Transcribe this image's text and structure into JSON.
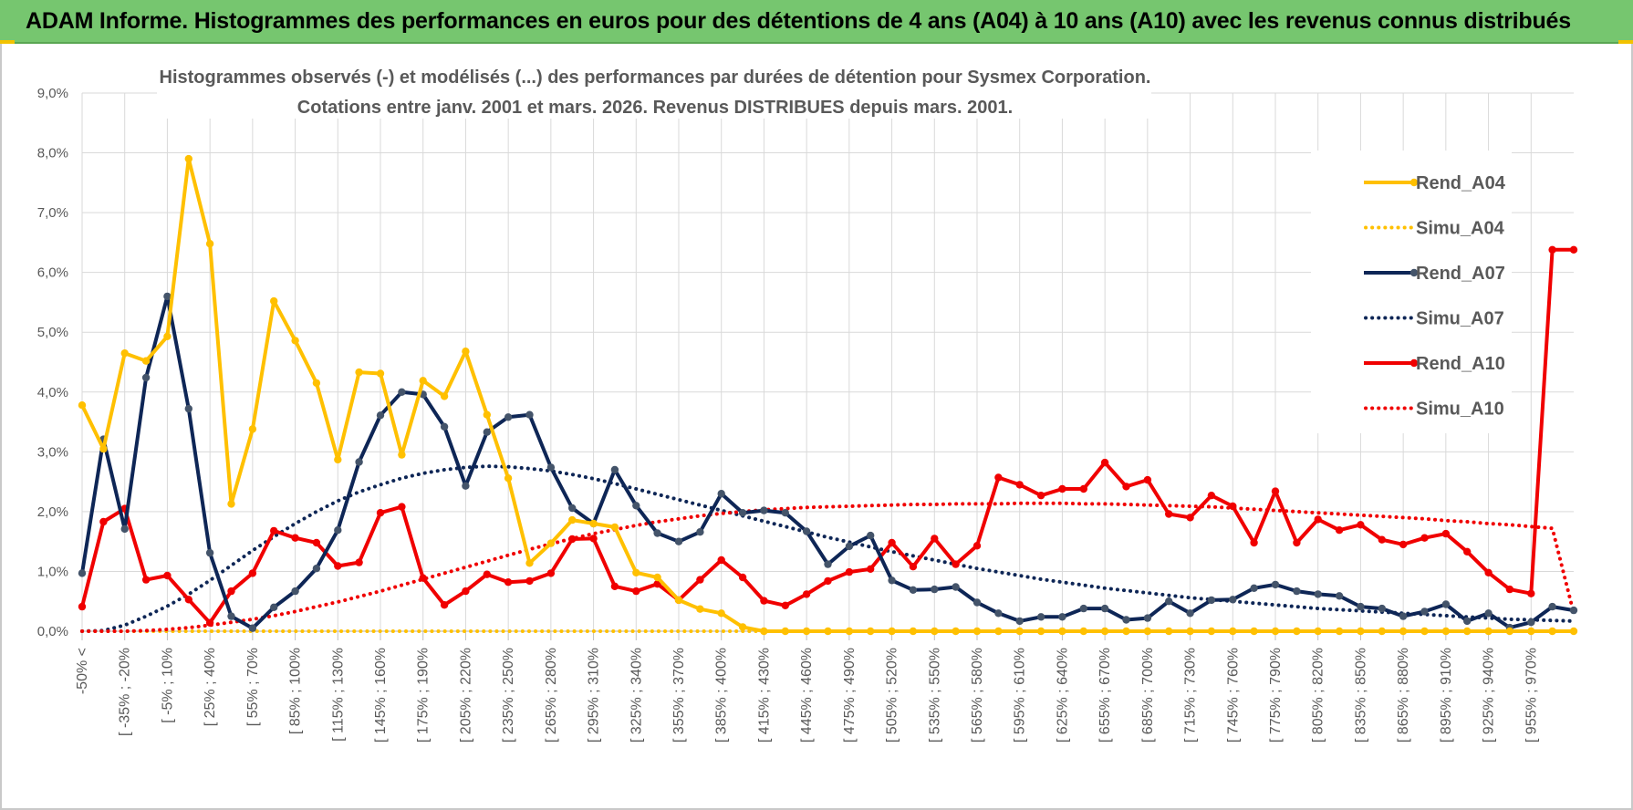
{
  "header": {
    "title": "ADAM Informe. Histogrammes des performances en euros pour des détentions de 4 ans (A04) à 10 ans (A10) avec les revenus connus distribués"
  },
  "colors": {
    "header_bg": "#76c66f",
    "a04": "#ffc000",
    "a07": "#0e2656",
    "a10": "#f00000",
    "grid": "#d9d9d9",
    "text": "#595959",
    "marker_a07": "#44546a"
  },
  "chart_data": {
    "type": "line",
    "title": "Histogrammes observés (-) et modélisés (...) des performances par durées de détention pour Sysmex Corporation.",
    "subtitle": "Cotations entre janv. 2001 et mars. 2026. Revenus DISTRIBUES depuis mars. 2001.",
    "ylim": [
      0,
      9
    ],
    "y_ticks": [
      "0,0%",
      "1,0%",
      "2,0%",
      "3,0%",
      "4,0%",
      "5,0%",
      "6,0%",
      "7,0%",
      "8,0%",
      "9,0%"
    ],
    "x_tick_labels": [
      "-50% <",
      "[ -35% ; -20%",
      "[ -5% ; 10%",
      "[ 25% ; 40%",
      "[ 55% ; 70%",
      "[ 85% ; 100%",
      "[ 115% ; 130%",
      "[ 145% ; 160%",
      "[ 175% ; 190%",
      "[ 205% ; 220%",
      "[ 235% ; 250%",
      "[ 265% ; 280%",
      "[ 295% ; 310%",
      "[ 325% ; 340%",
      "[ 355% ; 370%",
      "[ 385% ; 400%",
      "[ 415% ; 430%",
      "[ 445% ; 460%",
      "[ 475% ; 490%",
      "[ 505% ; 520%",
      "[ 535% ; 550%",
      "[ 565% ; 580%",
      "[ 595% ; 610%",
      "[ 625% ; 640%",
      "[ 655% ; 670%",
      "[ 685% ; 700%",
      "[ 715% ; 730%",
      "[ 745% ; 760%",
      "[ 775% ; 790%",
      "[ 805% ; 820%",
      "[ 835% ; 850%",
      "[ 865% ; 880%",
      "[ 895% ; 910%",
      "[ 925% ; 940%",
      "[ 955% ; 970%"
    ],
    "n_points": 71,
    "series": [
      {
        "name": "Rend_A04",
        "style": "solid",
        "color": "#ffc000",
        "values": [
          3.78,
          3.05,
          4.65,
          4.52,
          4.93,
          7.9,
          6.48,
          2.13,
          3.38,
          5.52,
          4.86,
          4.15,
          2.87,
          4.33,
          4.31,
          2.95,
          4.19,
          3.93,
          4.68,
          3.62,
          2.56,
          1.14,
          1.47,
          1.86,
          1.8,
          1.74,
          0.98,
          0.9,
          0.52,
          0.37,
          0.3,
          0.07,
          0,
          0,
          0,
          0,
          0,
          0,
          0,
          0,
          0,
          0,
          0,
          0,
          0,
          0,
          0,
          0,
          0,
          0,
          0,
          0,
          0,
          0,
          0,
          0,
          0,
          0,
          0,
          0,
          0,
          0,
          0,
          0,
          0,
          0,
          0,
          0,
          0,
          0,
          0
        ]
      },
      {
        "name": "Simu_A04",
        "style": "dotted",
        "color": "#ffc000",
        "values": [
          0,
          0,
          0,
          0,
          0,
          0,
          0,
          0,
          0,
          0,
          0,
          0,
          0,
          0,
          0,
          0,
          0,
          0,
          0,
          0,
          0,
          0,
          0,
          0,
          0,
          0,
          0,
          0,
          0,
          0,
          0,
          0,
          0,
          0,
          0,
          0,
          0,
          0,
          0,
          0,
          0,
          0,
          0,
          0,
          0,
          0,
          0,
          0,
          0,
          0,
          0,
          0,
          0,
          0,
          0,
          0,
          0,
          0,
          0,
          0,
          0,
          0,
          0,
          0,
          0,
          0,
          0,
          0,
          0,
          0,
          0
        ]
      },
      {
        "name": "Rend_A07",
        "style": "solid",
        "color": "#0e2656",
        "values": [
          0.97,
          3.21,
          1.71,
          4.24,
          5.6,
          3.72,
          1.31,
          0.25,
          0.05,
          0.4,
          0.67,
          1.05,
          1.69,
          2.83,
          3.61,
          4.0,
          3.96,
          3.42,
          2.43,
          3.33,
          3.58,
          3.62,
          2.74,
          2.06,
          1.8,
          2.7,
          2.1,
          1.64,
          1.5,
          1.66,
          2.3,
          1.98,
          2.02,
          1.98,
          1.67,
          1.12,
          1.42,
          1.6,
          0.85,
          0.69,
          0.7,
          0.74,
          0.48,
          0.3,
          0.17,
          0.24,
          0.24,
          0.38,
          0.38,
          0.19,
          0.22,
          0.5,
          0.3,
          0.52,
          0.53,
          0.72,
          0.78,
          0.67,
          0.62,
          0.59,
          0.41,
          0.38,
          0.25,
          0.33,
          0.45,
          0.17,
          0.3,
          0.06,
          0.15,
          0.41,
          0.35
        ]
      },
      {
        "name": "Simu_A07",
        "style": "dotted",
        "color": "#0e2656",
        "values": [
          0,
          0.01,
          0.1,
          0.25,
          0.42,
          0.62,
          0.85,
          1.1,
          1.35,
          1.58,
          1.8,
          2.0,
          2.18,
          2.33,
          2.45,
          2.56,
          2.64,
          2.7,
          2.74,
          2.76,
          2.75,
          2.72,
          2.68,
          2.62,
          2.55,
          2.47,
          2.38,
          2.29,
          2.2,
          2.11,
          2.02,
          1.93,
          1.84,
          1.75,
          1.66,
          1.57,
          1.49,
          1.41,
          1.33,
          1.26,
          1.19,
          1.12,
          1.05,
          0.99,
          0.93,
          0.87,
          0.82,
          0.77,
          0.72,
          0.68,
          0.64,
          0.6,
          0.56,
          0.53,
          0.5,
          0.47,
          0.44,
          0.41,
          0.38,
          0.36,
          0.34,
          0.32,
          0.3,
          0.28,
          0.26,
          0.24,
          0.22,
          0.2,
          0.19,
          0.18,
          0.17
        ]
      },
      {
        "name": "Rend_A10",
        "style": "solid",
        "color": "#f00000",
        "values": [
          0.41,
          1.83,
          2.05,
          0.86,
          0.93,
          0.53,
          0.14,
          0.67,
          0.97,
          1.68,
          1.56,
          1.48,
          1.09,
          1.15,
          1.98,
          2.08,
          0.89,
          0.44,
          0.67,
          0.95,
          0.82,
          0.84,
          0.97,
          1.54,
          1.55,
          0.75,
          0.67,
          0.79,
          0.52,
          0.86,
          1.19,
          0.9,
          0.51,
          0.43,
          0.62,
          0.84,
          0.99,
          1.04,
          1.48,
          1.08,
          1.55,
          1.12,
          1.43,
          2.57,
          2.45,
          2.27,
          2.38,
          2.38,
          2.82,
          2.42,
          2.53,
          1.96,
          1.9,
          2.27,
          2.09,
          1.48,
          2.34,
          1.48,
          1.87,
          1.69,
          1.78,
          1.53,
          1.45,
          1.56,
          1.63,
          1.33,
          0.98,
          0.7,
          0.63,
          6.38,
          6.38
        ]
      },
      {
        "name": "Simu_A10",
        "style": "dotted",
        "color": "#f00000",
        "values": [
          0,
          0,
          0,
          0.01,
          0.03,
          0.06,
          0.1,
          0.15,
          0.2,
          0.26,
          0.33,
          0.41,
          0.49,
          0.58,
          0.67,
          0.77,
          0.87,
          0.97,
          1.07,
          1.17,
          1.27,
          1.37,
          1.46,
          1.55,
          1.63,
          1.7,
          1.77,
          1.83,
          1.88,
          1.93,
          1.97,
          2.0,
          2.03,
          2.05,
          2.07,
          2.08,
          2.09,
          2.1,
          2.11,
          2.12,
          2.12,
          2.13,
          2.13,
          2.13,
          2.14,
          2.14,
          2.14,
          2.13,
          2.13,
          2.12,
          2.11,
          2.1,
          2.09,
          2.08,
          2.06,
          2.04,
          2.02,
          2.0,
          1.98,
          1.96,
          1.94,
          1.92,
          1.9,
          1.88,
          1.85,
          1.83,
          1.8,
          1.78,
          1.75,
          1.72,
          0.3
        ]
      }
    ],
    "legend": {
      "position": "right",
      "items": [
        "Rend_A04",
        "Simu_A04",
        "Rend_A07",
        "Simu_A07",
        "Rend_A10",
        "Simu_A10"
      ]
    }
  }
}
